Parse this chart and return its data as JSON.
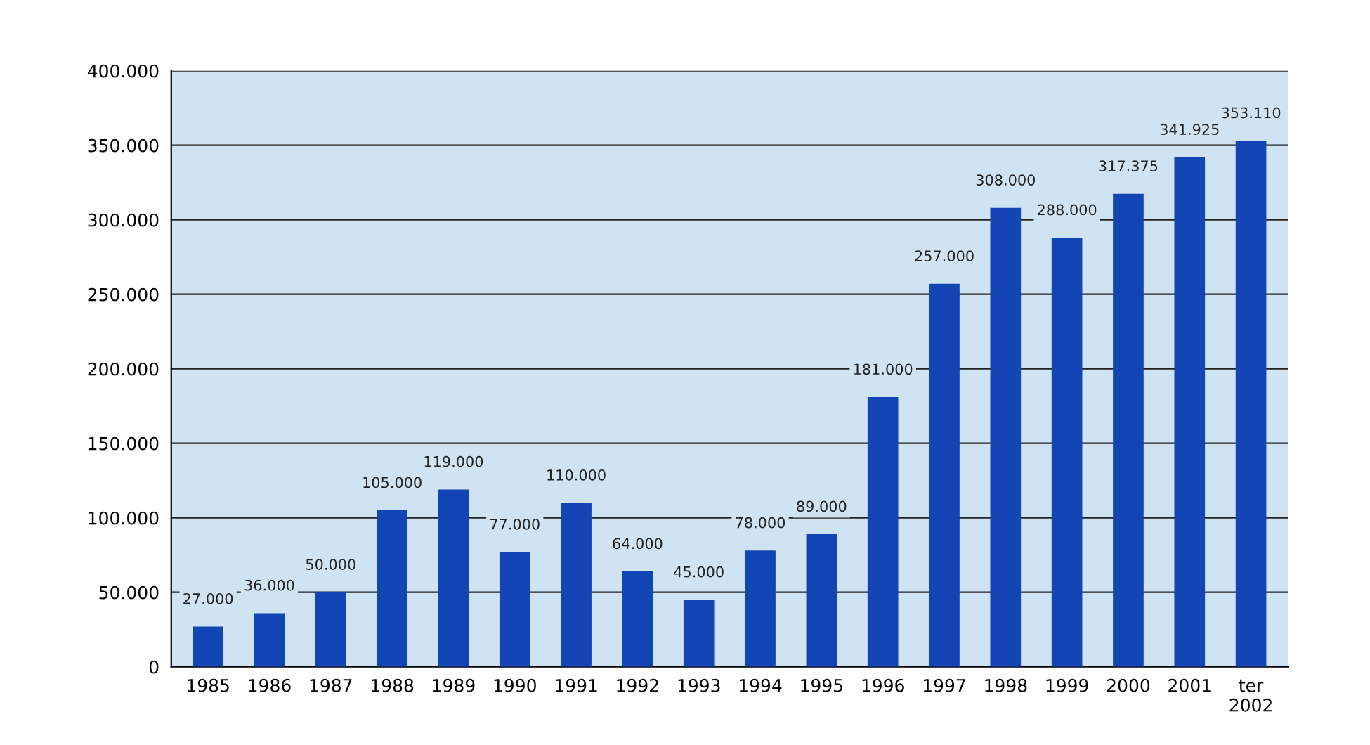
{
  "chart_data": {
    "type": "bar",
    "categories": [
      "1985",
      "1986",
      "1987",
      "1988",
      "1989",
      "1990",
      "1991",
      "1992",
      "1993",
      "1994",
      "1995",
      "1996",
      "1997",
      "1998",
      "1999",
      "2000",
      "2001",
      "ter\n2002"
    ],
    "values": [
      27000,
      36000,
      50000,
      105000,
      119000,
      77000,
      110000,
      64000,
      45000,
      78000,
      89000,
      181000,
      257000,
      308000,
      288000,
      317375,
      341925,
      353110
    ],
    "value_labels": [
      "27.000",
      "36.000",
      "50.000",
      "105.000",
      "119.000",
      "77.000",
      "110.000",
      "64.000",
      "45.000",
      "78.000",
      "89.000",
      "181.000",
      "257.000",
      "308.000",
      "288.000",
      "317.375",
      "341.925",
      "353.110"
    ],
    "color": "#1346b4",
    "ylim": [
      0,
      400000
    ],
    "yticks": [
      {
        "value": 0,
        "label": "0"
      },
      {
        "value": 50000,
        "label": "50.000"
      },
      {
        "value": 100000,
        "label": "100.000"
      },
      {
        "value": 150000,
        "label": "150.000"
      },
      {
        "value": 200000,
        "label": "200.000"
      },
      {
        "value": 250000,
        "label": "250.000"
      },
      {
        "value": 300000,
        "label": "300.000"
      },
      {
        "value": 350000,
        "label": "350.000"
      },
      {
        "value": 400000,
        "label": "400.000"
      }
    ],
    "grid": "y"
  }
}
